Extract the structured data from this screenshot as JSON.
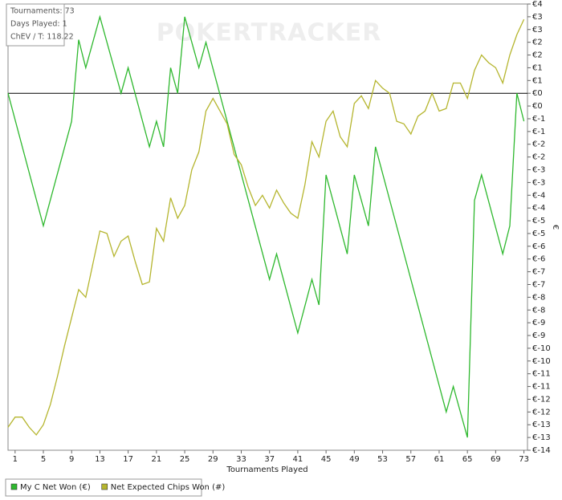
{
  "chart_data": {
    "type": "line",
    "info": [
      "Tournaments: 73",
      "Days Played: 1",
      "ChEV / T: 118.22"
    ],
    "watermark": "POKERTRACKER",
    "xlabel": "Tournaments Played",
    "ylabel": "€",
    "xlim": [
      0,
      73.5
    ],
    "xticks": [
      1,
      5,
      9,
      13,
      17,
      21,
      25,
      29,
      33,
      37,
      41,
      45,
      49,
      53,
      57,
      61,
      65,
      69,
      73
    ],
    "ylim": [
      -14,
      3.5
    ],
    "yticks": [
      {
        "value": 3.5,
        "label": "€4"
      },
      {
        "value": 3,
        "label": "€3"
      },
      {
        "value": 2.5,
        "label": "€3"
      },
      {
        "value": 2,
        "label": "€2"
      },
      {
        "value": 1.5,
        "label": "€2"
      },
      {
        "value": 1,
        "label": "€1"
      },
      {
        "value": 0.5,
        "label": "€1"
      },
      {
        "value": 0,
        "label": "€0"
      },
      {
        "value": -0.5,
        "label": "€0"
      },
      {
        "value": -1,
        "label": "€-1"
      },
      {
        "value": -1.5,
        "label": "€-1"
      },
      {
        "value": -2,
        "label": "€-2"
      },
      {
        "value": -2.5,
        "label": "€-2"
      },
      {
        "value": -3,
        "label": "€-3"
      },
      {
        "value": -3.5,
        "label": "€-3"
      },
      {
        "value": -4,
        "label": "€-4"
      },
      {
        "value": -4.5,
        "label": "€-4"
      },
      {
        "value": -5,
        "label": "€-5"
      },
      {
        "value": -5.5,
        "label": "€-5"
      },
      {
        "value": -6,
        "label": "€-6"
      },
      {
        "value": -6.5,
        "label": "€-6"
      },
      {
        "value": -7,
        "label": "€-7"
      },
      {
        "value": -7.5,
        "label": "€-7"
      },
      {
        "value": -8,
        "label": "€-8"
      },
      {
        "value": -8.5,
        "label": "€-8"
      },
      {
        "value": -9,
        "label": "€-9"
      },
      {
        "value": -9.5,
        "label": "€-9"
      },
      {
        "value": -10,
        "label": "€-10"
      },
      {
        "value": -10.5,
        "label": "€-10"
      },
      {
        "value": -11,
        "label": "€-11"
      },
      {
        "value": -11.5,
        "label": "€-11"
      },
      {
        "value": -12,
        "label": "€-12"
      },
      {
        "value": -12.5,
        "label": "€-12"
      },
      {
        "value": -13,
        "label": "€-13"
      },
      {
        "value": -13.5,
        "label": "€-13"
      },
      {
        "value": -14,
        "label": "€-14"
      }
    ],
    "series": [
      {
        "name": "My C Net Won (€)",
        "color": "#2eb82e",
        "x": [
          0,
          5,
          9,
          10,
          11,
          13,
          16,
          17,
          20,
          21,
          22,
          23,
          24,
          25,
          27,
          28,
          37,
          38,
          41,
          43,
          44,
          45,
          48,
          49,
          51,
          52,
          62,
          63,
          65,
          66,
          67,
          70,
          71,
          72,
          73
        ],
        "values": [
          0,
          -5.2,
          -1.1,
          2.1,
          1.0,
          3.0,
          0,
          1.0,
          -2.1,
          -1.1,
          -2.1,
          1.0,
          0,
          3.0,
          1.0,
          2.0,
          -7.3,
          -6.3,
          -9.4,
          -7.3,
          -8.3,
          -3.2,
          -6.3,
          -3.2,
          -5.2,
          -2.1,
          -12.5,
          -11.5,
          -13.5,
          -4.2,
          -3.2,
          -6.3,
          -5.2,
          0,
          -1.1
        ]
      },
      {
        "name": "Net Expected Chips Won (#)",
        "color": "#b5b52e",
        "x": [
          0,
          1,
          2,
          3,
          4,
          5,
          6,
          7,
          8,
          9,
          10,
          11,
          12,
          13,
          14,
          15,
          16,
          17,
          18,
          19,
          20,
          21,
          22,
          23,
          24,
          25,
          26,
          27,
          28,
          29,
          30,
          31,
          32,
          33,
          34,
          35,
          36,
          37,
          38,
          39,
          40,
          41,
          42,
          43,
          44,
          45,
          46,
          47,
          48,
          49,
          50,
          51,
          52,
          53,
          54,
          55,
          56,
          57,
          58,
          59,
          60,
          61,
          62,
          63,
          64,
          65,
          66,
          67,
          68,
          69,
          70,
          71,
          72,
          73
        ],
        "values": [
          -13.1,
          -12.7,
          -12.7,
          -13.1,
          -13.4,
          -13.0,
          -12.2,
          -11.1,
          -9.9,
          -8.8,
          -7.7,
          -8.0,
          -6.7,
          -5.4,
          -5.5,
          -6.4,
          -5.8,
          -5.6,
          -6.6,
          -7.5,
          -7.4,
          -5.3,
          -5.8,
          -4.1,
          -4.9,
          -4.4,
          -3.0,
          -2.3,
          -0.7,
          -0.2,
          -0.7,
          -1.2,
          -2.4,
          -2.8,
          -3.7,
          -4.4,
          -4.0,
          -4.5,
          -3.8,
          -4.3,
          -4.7,
          -4.9,
          -3.6,
          -1.9,
          -2.5,
          -1.1,
          -0.7,
          -1.7,
          -2.1,
          -0.4,
          -0.1,
          -0.6,
          0.5,
          0.2,
          0.0,
          -1.1,
          -1.2,
          -1.6,
          -0.9,
          -0.7,
          0.0,
          -0.7,
          -0.6,
          0.4,
          0.4,
          -0.2,
          0.9,
          1.5,
          1.2,
          1.0,
          0.4,
          1.5,
          2.3,
          2.9
        ]
      }
    ]
  }
}
